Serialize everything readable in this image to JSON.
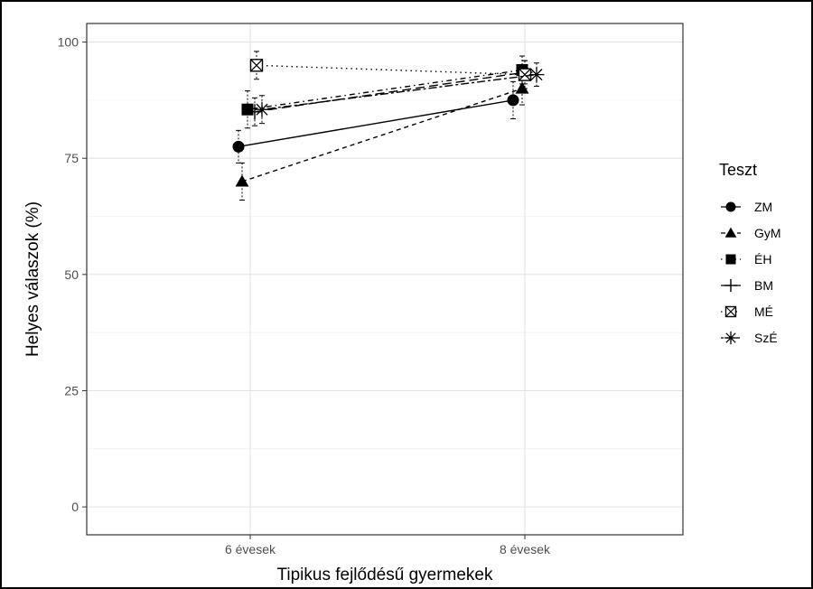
{
  "chart_data": {
    "type": "line",
    "title": "",
    "xlabel": "Tipikus fejlődésű gyermekek",
    "ylabel": "Helyes válaszok (%)",
    "categories": [
      "6 évesek",
      "8 évesek"
    ],
    "ylim": [
      -6,
      104
    ],
    "yticks": [
      0,
      25,
      50,
      75,
      100
    ],
    "grid": true,
    "legend": {
      "title": "Teszt",
      "position": "right"
    },
    "series": [
      {
        "name": "ZM",
        "marker": "circle",
        "linestyle": "solid",
        "values": [
          77.5,
          87.5
        ],
        "errors": [
          3.5,
          4.0
        ]
      },
      {
        "name": "GyM",
        "marker": "triangle",
        "linestyle": "dashed",
        "values": [
          70.0,
          90.0
        ],
        "errors": [
          4.0,
          3.5
        ]
      },
      {
        "name": "ÉH",
        "marker": "square",
        "linestyle": "dotdash",
        "values": [
          85.5,
          94.0
        ],
        "errors": [
          4.0,
          3.0
        ]
      },
      {
        "name": "BM",
        "marker": "plus",
        "linestyle": "longdash",
        "values": [
          85.0,
          93.5
        ],
        "errors": [
          3.0,
          2.5
        ]
      },
      {
        "name": "MÉ",
        "marker": "square-crossed",
        "linestyle": "dotted",
        "values": [
          95.0,
          93.0
        ],
        "errors": [
          3.0,
          3.0
        ]
      },
      {
        "name": "SzÉ",
        "marker": "asterisk",
        "linestyle": "twodash",
        "values": [
          85.5,
          93.0
        ],
        "errors": [
          3.0,
          2.5
        ]
      }
    ]
  }
}
